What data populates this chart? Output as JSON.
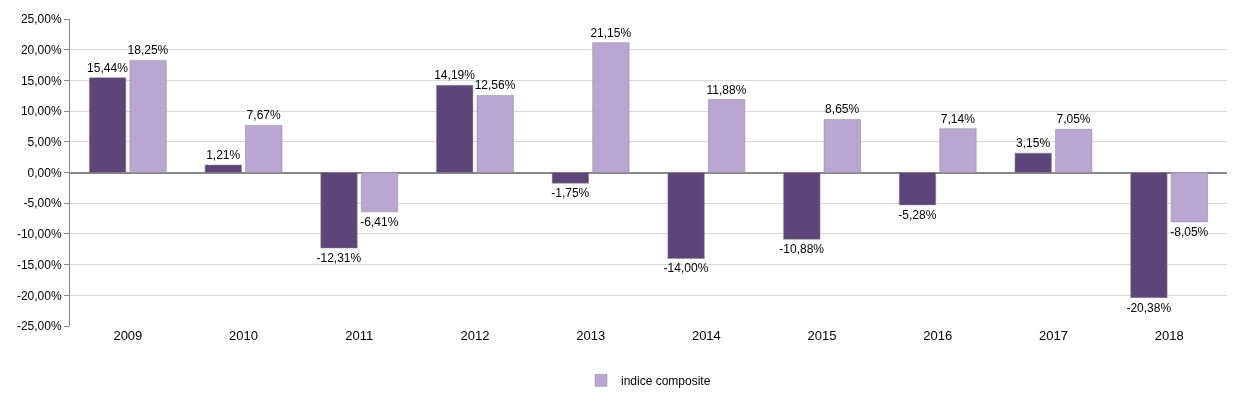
{
  "chart_data": {
    "type": "bar",
    "categories": [
      "2009",
      "2010",
      "2011",
      "2012",
      "2013",
      "2014",
      "2015",
      "2016",
      "2017",
      "2018"
    ],
    "series": [
      {
        "color": "#5e4579",
        "values": [
          15.44,
          1.21,
          -12.31,
          14.19,
          -1.75,
          -14.0,
          -10.88,
          -5.28,
          3.15,
          -20.38
        ],
        "value_labels": [
          "15,44%",
          "1,21%",
          "-12,31%",
          "14,19%",
          "-1,75%",
          "-14,00%",
          "-10,88%",
          "-5,28%",
          "3,15%",
          "-20,38%"
        ]
      },
      {
        "name": "indice composite",
        "color": "#b9a6d2",
        "values": [
          18.25,
          7.67,
          -6.41,
          12.56,
          21.15,
          11.88,
          8.65,
          7.14,
          7.05,
          -8.05
        ],
        "value_labels": [
          "18,25%",
          "7,67%",
          "-6,41%",
          "12,56%",
          "21,15%",
          "11,88%",
          "8,65%",
          "7,14%",
          "7,05%",
          "-8,05%"
        ]
      }
    ],
    "ylim": [
      -25,
      25
    ],
    "yticks": [
      {
        "value": -25,
        "label": "-25,00%"
      },
      {
        "value": -20,
        "label": "-20,00%"
      },
      {
        "value": -15,
        "label": "-15,00%"
      },
      {
        "value": -10,
        "label": "-10,00%"
      },
      {
        "value": -5,
        "label": "-5,00%"
      },
      {
        "value": 0,
        "label": "0,00%"
      },
      {
        "value": 5,
        "label": "5,00%"
      },
      {
        "value": 10,
        "label": "10,00%"
      },
      {
        "value": 15,
        "label": "15,00%"
      },
      {
        "value": 20,
        "label": "20,00%"
      },
      {
        "value": 25,
        "label": "25,00%"
      }
    ],
    "grid": "y",
    "legend": "bottom"
  }
}
